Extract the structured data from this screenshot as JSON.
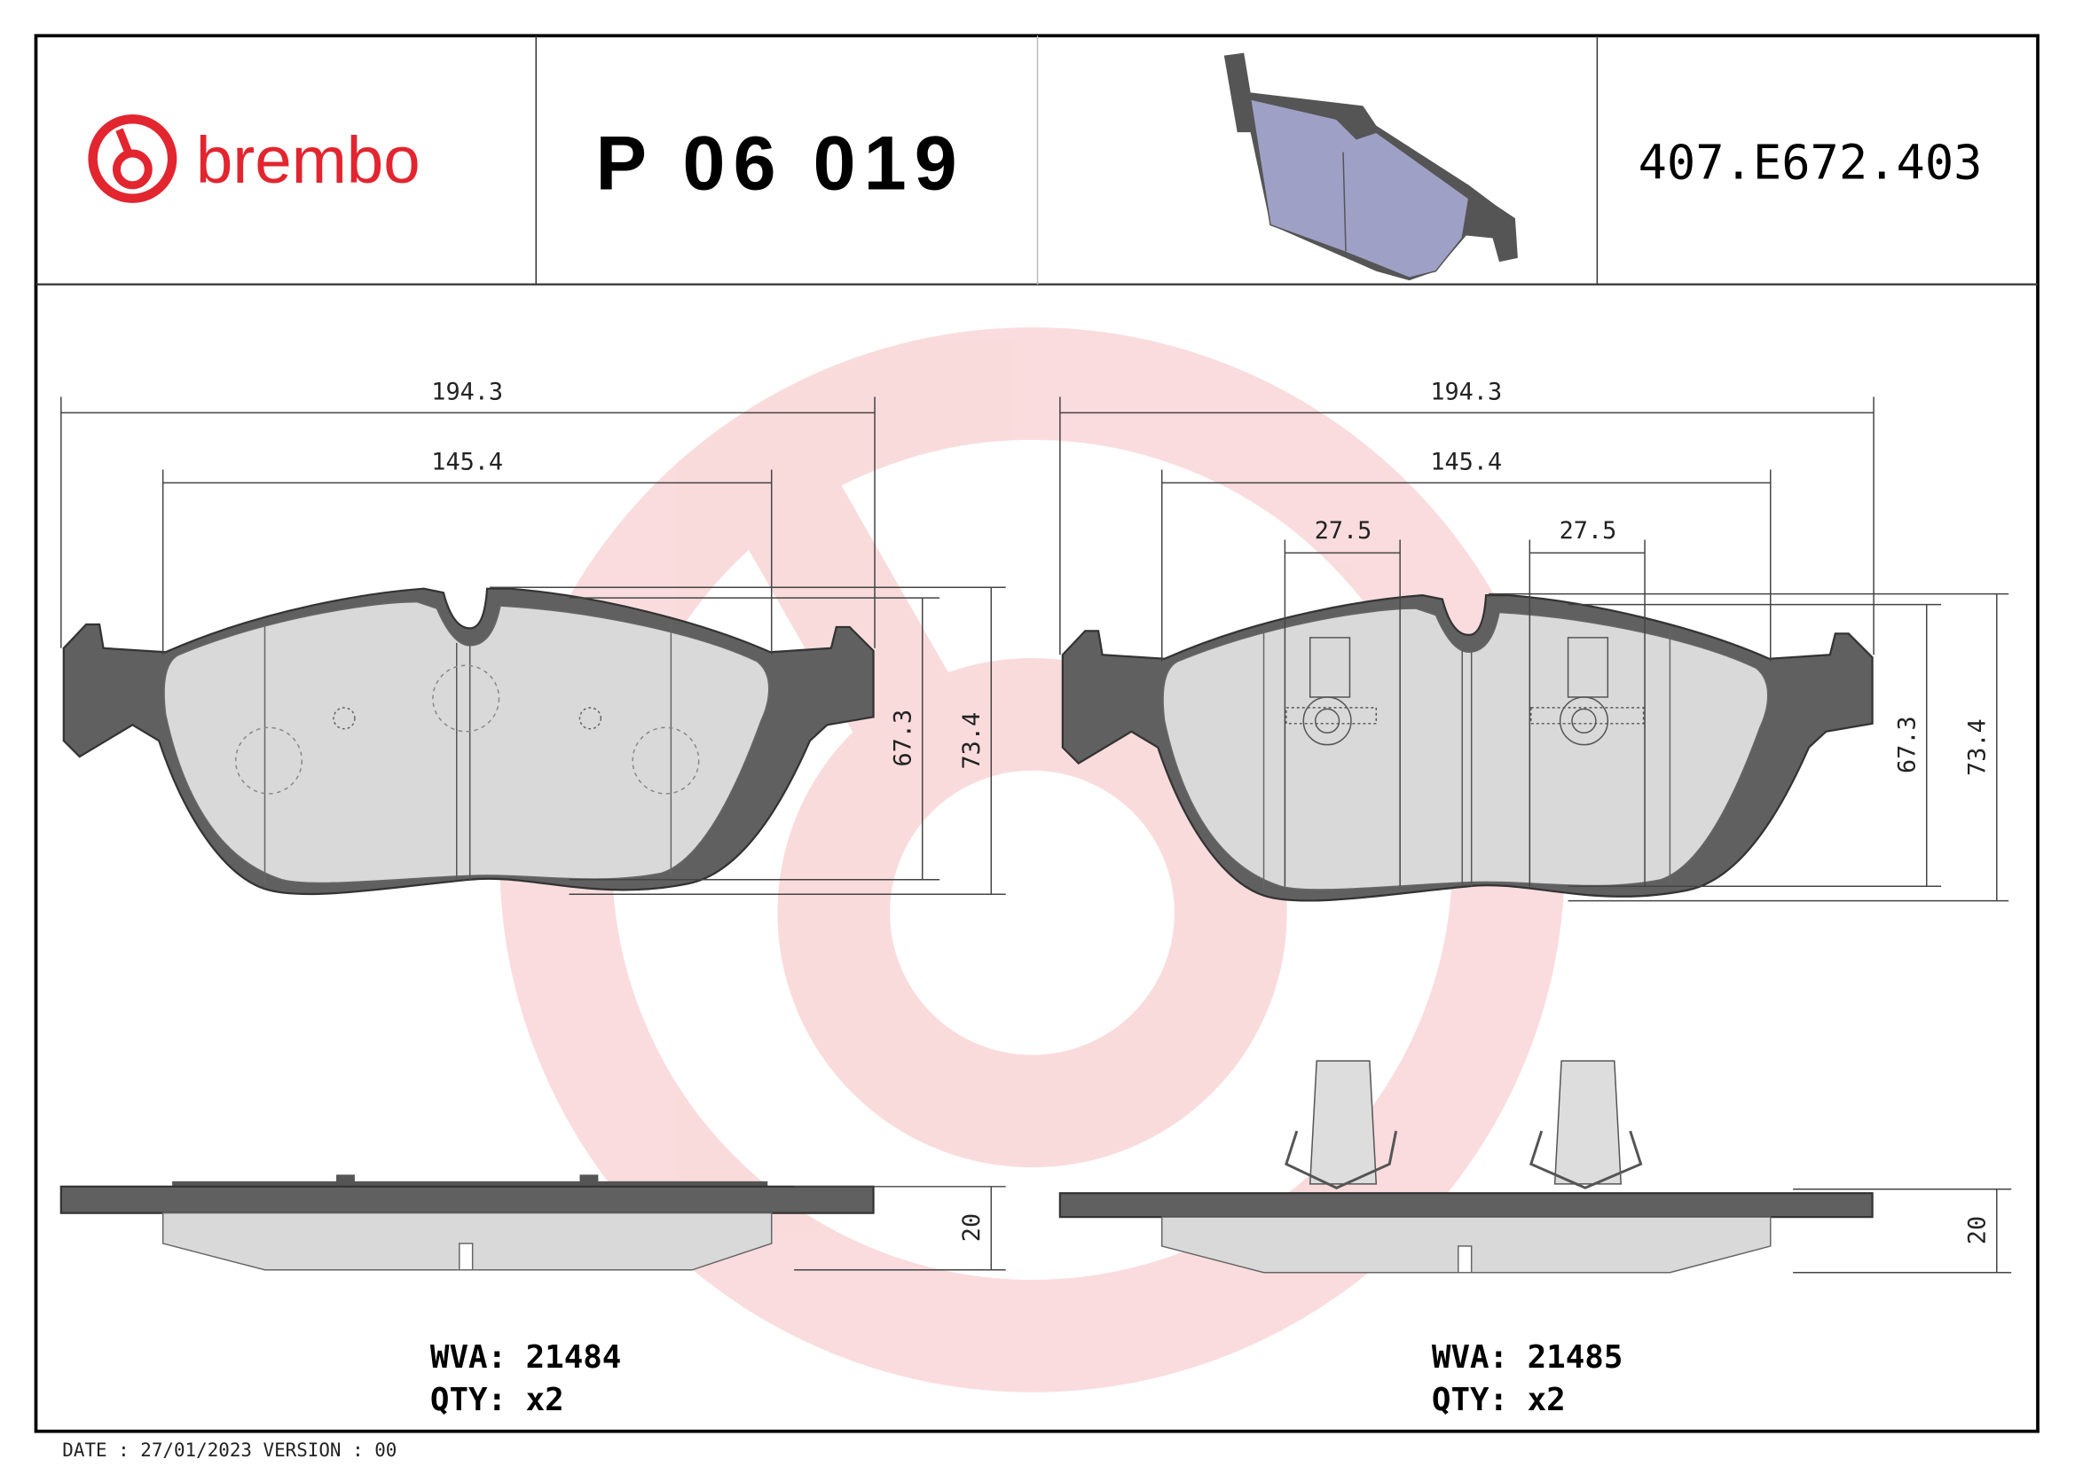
{
  "header": {
    "brand": "brembo",
    "part_number": "P 06 019",
    "reference": "407.E672.403",
    "brand_color": "#e2252f"
  },
  "left_pad": {
    "width_overall": "194.3",
    "width_inner": "145.4",
    "height_inner": "67.3",
    "height_overall": "73.4",
    "thickness": "20",
    "wva": "WVA: 21484",
    "qty": "QTY: x2"
  },
  "right_pad": {
    "width_overall": "194.3",
    "width_inner": "145.4",
    "sensor_left": "27.5",
    "sensor_right": "27.5",
    "height_inner": "67.3",
    "height_overall": "73.4",
    "thickness": "20",
    "wva": "WVA: 21485",
    "qty": "QTY: x2"
  },
  "footer": {
    "date_version": "DATE : 27/01/2023 VERSION : 00"
  }
}
